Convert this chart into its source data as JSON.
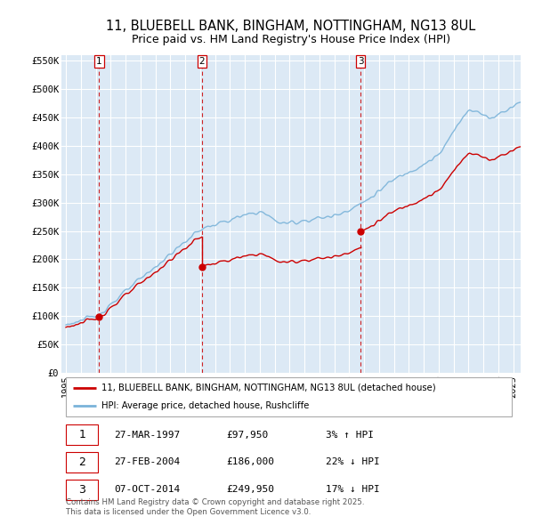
{
  "title": "11, BLUEBELL BANK, BINGHAM, NOTTINGHAM, NG13 8UL",
  "subtitle": "Price paid vs. HM Land Registry's House Price Index (HPI)",
  "ylabel_ticks": [
    "£0",
    "£50K",
    "£100K",
    "£150K",
    "£200K",
    "£250K",
    "£300K",
    "£350K",
    "£400K",
    "£450K",
    "£500K",
    "£550K"
  ],
  "ytick_vals": [
    0,
    50000,
    100000,
    150000,
    200000,
    250000,
    300000,
    350000,
    400000,
    450000,
    500000,
    550000
  ],
  "ylim": [
    0,
    560000
  ],
  "xlim_start": 1994.7,
  "xlim_end": 2025.5,
  "background_color": "#dce9f5",
  "plot_bg_color": "#dce9f5",
  "grid_color": "#ffffff",
  "hpi_line_color": "#7ab3d9",
  "sale_line_color": "#cc0000",
  "sale_marker_color": "#cc0000",
  "vline_color": "#cc0000",
  "sale_dates_year": [
    1997.23,
    2004.12,
    2014.77
  ],
  "sale_prices": [
    97950,
    186000,
    249950
  ],
  "sale_labels": [
    "1",
    "2",
    "3"
  ],
  "legend_sale_label": "11, BLUEBELL BANK, BINGHAM, NOTTINGHAM, NG13 8UL (detached house)",
  "legend_hpi_label": "HPI: Average price, detached house, Rushcliffe",
  "table_rows": [
    [
      "1",
      "27-MAR-1997",
      "£97,950",
      "3% ↑ HPI"
    ],
    [
      "2",
      "27-FEB-2004",
      "£186,000",
      "22% ↓ HPI"
    ],
    [
      "3",
      "07-OCT-2014",
      "£249,950",
      "17% ↓ HPI"
    ]
  ],
  "footnote": "Contains HM Land Registry data © Crown copyright and database right 2025.\nThis data is licensed under the Open Government Licence v3.0.",
  "title_fontsize": 10.5,
  "subtitle_fontsize": 9
}
